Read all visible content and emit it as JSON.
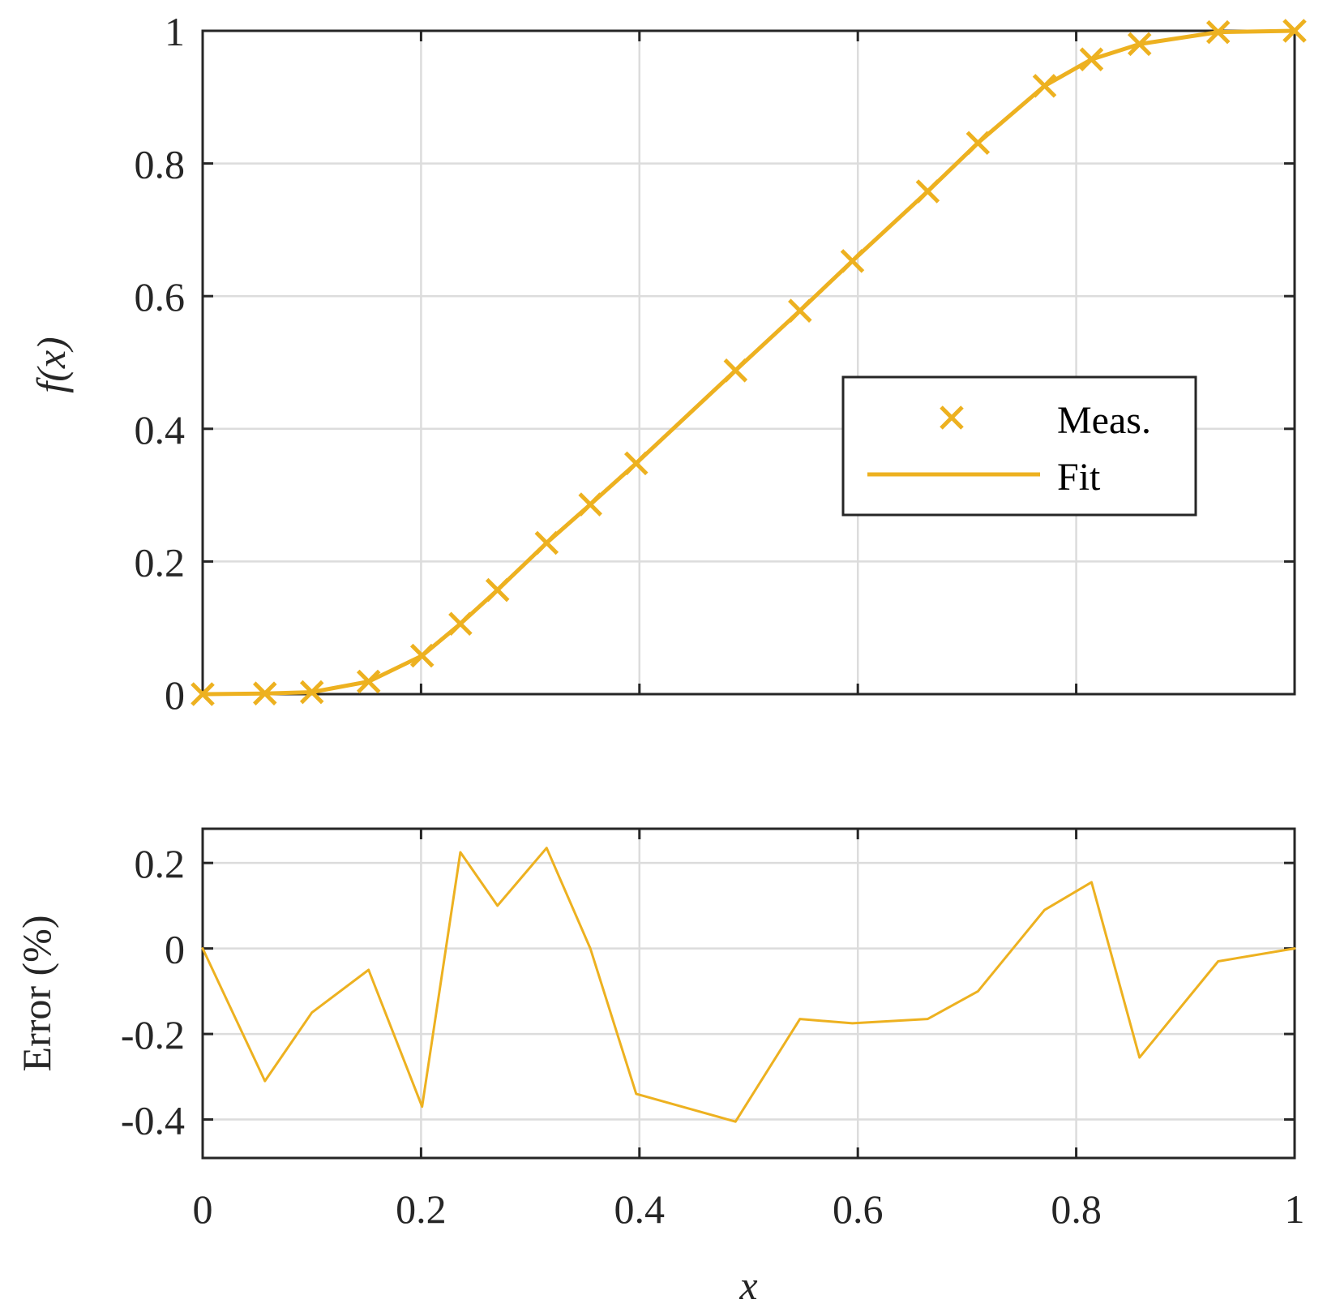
{
  "chart_data": [
    {
      "type": "line",
      "ylabel": "f(x)",
      "xlim": [
        0,
        1
      ],
      "ylim": [
        0,
        1
      ],
      "xticks": [
        "",
        "",
        "",
        "",
        "",
        ""
      ],
      "yticks": [
        "0",
        "0.2",
        "0.4",
        "0.6",
        "0.8",
        "1"
      ],
      "grid": true,
      "legend_position": "center-right",
      "color": "#EDB120",
      "series": [
        {
          "name": "Meas.",
          "style": "markers",
          "marker": "x",
          "x": [
            0,
            0.057,
            0.1,
            0.152,
            0.201,
            0.236,
            0.27,
            0.315,
            0.355,
            0.397,
            0.488,
            0.547,
            0.595,
            0.664,
            0.71,
            0.771,
            0.814,
            0.858,
            0.93,
            1.0
          ],
          "y": [
            0.0,
            0.001,
            0.003,
            0.019,
            0.058,
            0.106,
            0.157,
            0.228,
            0.286,
            0.348,
            0.488,
            0.578,
            0.653,
            0.758,
            0.831,
            0.917,
            0.957,
            0.98,
            0.998,
            1.0
          ]
        },
        {
          "name": "Fit",
          "style": "line",
          "x": [
            0,
            0.057,
            0.1,
            0.152,
            0.201,
            0.236,
            0.27,
            0.315,
            0.355,
            0.397,
            0.488,
            0.547,
            0.595,
            0.664,
            0.71,
            0.771,
            0.814,
            0.858,
            0.93,
            1.0
          ],
          "y": [
            0.0,
            0.001,
            0.003,
            0.019,
            0.058,
            0.106,
            0.157,
            0.228,
            0.286,
            0.348,
            0.488,
            0.578,
            0.653,
            0.758,
            0.831,
            0.917,
            0.957,
            0.98,
            0.998,
            1.0
          ]
        }
      ]
    },
    {
      "type": "line",
      "xlabel": "x",
      "ylabel": "Error (%)",
      "xlim": [
        0,
        1
      ],
      "ylim": [
        -0.49,
        0.28
      ],
      "xticks": [
        "0",
        "0.2",
        "0.4",
        "0.6",
        "0.8",
        "1"
      ],
      "yticks": [
        "-0.4",
        "-0.2",
        "0",
        "0.2"
      ],
      "grid": true,
      "color": "#EDB120",
      "series": [
        {
          "style": "line",
          "x": [
            0,
            0.057,
            0.1,
            0.152,
            0.201,
            0.236,
            0.27,
            0.315,
            0.355,
            0.397,
            0.488,
            0.547,
            0.595,
            0.664,
            0.71,
            0.771,
            0.814,
            0.858,
            0.93,
            1.0
          ],
          "y": [
            0.0,
            -0.31,
            -0.15,
            -0.05,
            -0.37,
            0.225,
            0.1,
            0.235,
            0.0,
            -0.34,
            -0.405,
            -0.165,
            -0.175,
            -0.165,
            -0.1,
            0.09,
            0.155,
            -0.255,
            -0.03,
            0.0
          ]
        }
      ]
    }
  ]
}
